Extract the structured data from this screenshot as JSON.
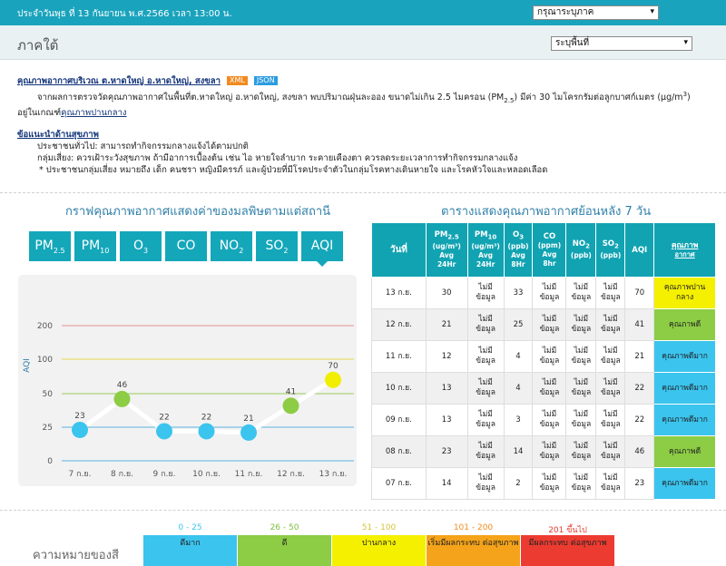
{
  "header": {
    "date_text": "ประจำวันพุธ ที่ 13 กันยายน พ.ศ.2566 เวลา 13:00 น.",
    "region_select": "กรุณาระบุภาค",
    "arrow": "▾"
  },
  "region": {
    "title": "ภาคใต้",
    "area_select": "ระบุพื้นที่"
  },
  "station": {
    "link": "คุณภาพอากาศบริเวณ ต.หาดใหญ่ อ.หาดใหญ่, สงขลา",
    "xml": "XML",
    "json": "JSON",
    "desc_a": "จากผลการตรวจวัดคุณภาพอากาศในพื้นที่ต.หาดใหญ่ อ.หาดใหญ่, สงขลา พบปริมาณฝุ่นละออง ขนาดไม่เกิน 2.5 ไมครอน (PM",
    "desc_sub": "2.5",
    "desc_b": ") มีค่า 30 ไมโครกรัมต่อลูกบาศก์เมตร (µg/m",
    "desc_sup": "3",
    "desc_c": ")",
    "desc_d": "อยู่ในเกณฑ์",
    "desc_link": "คุณภาพปานกลาง",
    "advice_title": "ข้อแนะนำด้านสุขภาพ",
    "advice_general": "ประชาชนทั่วไป: สามารถทำกิจกรรมกลางแจ้งได้ตามปกติ",
    "advice_risk": "กลุ่มเสี่ยง: ควรเฝ้าระวังสุขภาพ ถ้ามีอาการเบื้องต้น เช่น ไอ หายใจลำบาก ระคายเคืองตา ควรลดระยะเวลาการทำกิจกรรมกลางแจ้ง",
    "advice_note": "* ประชาชนกลุ่มเสี่ยง หมายถึง เด็ก คนชรา หญิงมีครรภ์ และผู้ป่วยที่มีโรคประจำตัวในกลุ่มโรคทางเดินหายใจ และโรคหัวใจและหลอดเลือด"
  },
  "graph_title": "กราฟคุณภาพอากาศแสดงค่าของมลพิษตามแต่สถานี",
  "pollutant_tabs": [
    {
      "main": "PM",
      "sub": "2.5"
    },
    {
      "main": "PM",
      "sub": "10"
    },
    {
      "main": "O",
      "sub": "3"
    },
    {
      "main": "CO",
      "sub": ""
    },
    {
      "main": "NO",
      "sub": "2"
    },
    {
      "main": "SO",
      "sub": "2"
    },
    {
      "main": "AQI",
      "sub": ""
    }
  ],
  "chart_data": {
    "type": "line",
    "ylabel": "AQI",
    "categories": [
      "7 ก.ย.",
      "8 ก.ย.",
      "9 ก.ย.",
      "10 ก.ย.",
      "11 ก.ย.",
      "12 ก.ย.",
      "13 ก.ย."
    ],
    "values": [
      23,
      46,
      22,
      22,
      21,
      41,
      70
    ],
    "point_colors": [
      "#3bc4ee",
      "#8dcc45",
      "#3bc4ee",
      "#3bc4ee",
      "#3bc4ee",
      "#8dcc45",
      "#f1ee00"
    ],
    "y_ticks": [
      0,
      25,
      50,
      100,
      200
    ],
    "threshold_lines": [
      {
        "value": 25,
        "color": "#5ab4e0"
      },
      {
        "value": 50,
        "color": "#9bcc5a"
      },
      {
        "value": 100,
        "color": "#e8d84a"
      },
      {
        "value": 200,
        "color": "#e89090"
      }
    ],
    "grid": true
  },
  "table_title": "ตารางแสดงคุณภาพอากาศย้อนหลัง 7 วัน",
  "table": {
    "headers": [
      {
        "l1": "วันที่",
        "sub": "",
        "l2": "",
        "l3": "",
        "l4": ""
      },
      {
        "l1": "PM",
        "sub": "2.5",
        "l2": "(ug/m³)",
        "l3": "Avg",
        "l4": "24Hr"
      },
      {
        "l1": "PM",
        "sub": "10",
        "l2": "(ug/m³)",
        "l3": "Avg",
        "l4": "24Hr"
      },
      {
        "l1": "O",
        "sub": "3",
        "l2": "(ppb)",
        "l3": "Avg",
        "l4": "8Hr"
      },
      {
        "l1": "CO",
        "sub": "",
        "l2": "(ppm)",
        "l3": "Avg",
        "l4": "8hr"
      },
      {
        "l1": "NO",
        "sub": "2",
        "l2": "(ppb)",
        "l3": "",
        "l4": ""
      },
      {
        "l1": "SO",
        "sub": "2",
        "l2": "(ppb)",
        "l3": "",
        "l4": ""
      },
      {
        "l1": "AQI",
        "sub": "",
        "l2": "",
        "l3": "",
        "l4": ""
      },
      {
        "l1": "คุณภาพ",
        "sub": "",
        "l2": "อากาศ",
        "l3": "",
        "l4": ""
      }
    ],
    "rows": [
      {
        "date": "13 ก.ย.",
        "pm25": "30",
        "pm10": "ไม่มี ข้อมูล",
        "o3": "33",
        "co": "ไม่มี ข้อมูล",
        "no2": "ไม่มี ข้อมูล",
        "so2": "ไม่มี ข้อมูล",
        "aqi": "70",
        "quality": "คุณภาพปาน กลาง",
        "color": "#f4f000"
      },
      {
        "date": "12 ก.ย.",
        "pm25": "21",
        "pm10": "ไม่มี ข้อมูล",
        "o3": "25",
        "co": "ไม่มี ข้อมูล",
        "no2": "ไม่มี ข้อมูล",
        "so2": "ไม่มี ข้อมูล",
        "aqi": "41",
        "quality": "คุณภาพดี",
        "color": "#8dcc45"
      },
      {
        "date": "11 ก.ย.",
        "pm25": "12",
        "pm10": "ไม่มี ข้อมูล",
        "o3": "4",
        "co": "ไม่มี ข้อมูล",
        "no2": "ไม่มี ข้อมูล",
        "so2": "ไม่มี ข้อมูล",
        "aqi": "21",
        "quality": "คุณภาพดีมาก",
        "color": "#3bc4ee"
      },
      {
        "date": "10 ก.ย.",
        "pm25": "13",
        "pm10": "ไม่มี ข้อมูล",
        "o3": "4",
        "co": "ไม่มี ข้อมูล",
        "no2": "ไม่มี ข้อมูล",
        "so2": "ไม่มี ข้อมูล",
        "aqi": "22",
        "quality": "คุณภาพดีมาก",
        "color": "#3bc4ee"
      },
      {
        "date": "09 ก.ย.",
        "pm25": "13",
        "pm10": "ไม่มี ข้อมูล",
        "o3": "3",
        "co": "ไม่มี ข้อมูล",
        "no2": "ไม่มี ข้อมูล",
        "so2": "ไม่มี ข้อมูล",
        "aqi": "22",
        "quality": "คุณภาพดีมาก",
        "color": "#3bc4ee"
      },
      {
        "date": "08 ก.ย.",
        "pm25": "23",
        "pm10": "ไม่มี ข้อมูล",
        "o3": "14",
        "co": "ไม่มี ข้อมูล",
        "no2": "ไม่มี ข้อมูล",
        "so2": "ไม่มี ข้อมูล",
        "aqi": "46",
        "quality": "คุณภาพดี",
        "color": "#8dcc45"
      },
      {
        "date": "07 ก.ย.",
        "pm25": "14",
        "pm10": "ไม่มี ข้อมูล",
        "o3": "2",
        "co": "ไม่มี ข้อมูล",
        "no2": "ไม่มี ข้อมูล",
        "so2": "ไม่มี ข้อมูล",
        "aqi": "23",
        "quality": "คุณภาพดีมาก",
        "color": "#3bc4ee"
      }
    ]
  },
  "legend": {
    "title": "ความหมายของสี",
    "items": [
      {
        "range": "0 - 25",
        "label": "ดีมาก",
        "color": "#3bc4ee",
        "range_color": "#3bc4ee"
      },
      {
        "range": "26 - 50",
        "label": "ดี",
        "color": "#8dcc45",
        "range_color": "#7bbf3a"
      },
      {
        "range": "51 - 100",
        "label": "ปานกลาง",
        "color": "#f4f000",
        "range_color": "#d6c23a"
      },
      {
        "range": "101 - 200",
        "label": "เริ่มมีผลกระทบ ต่อสุขภาพ",
        "color": "#f5a31a",
        "range_color": "#f08a1a"
      },
      {
        "range": "201 ขึ้นไป",
        "label": "มีผลกระทบ ต่อสุขภาพ",
        "color": "#ec3b30",
        "range_color": "#e33b2e"
      }
    ]
  }
}
